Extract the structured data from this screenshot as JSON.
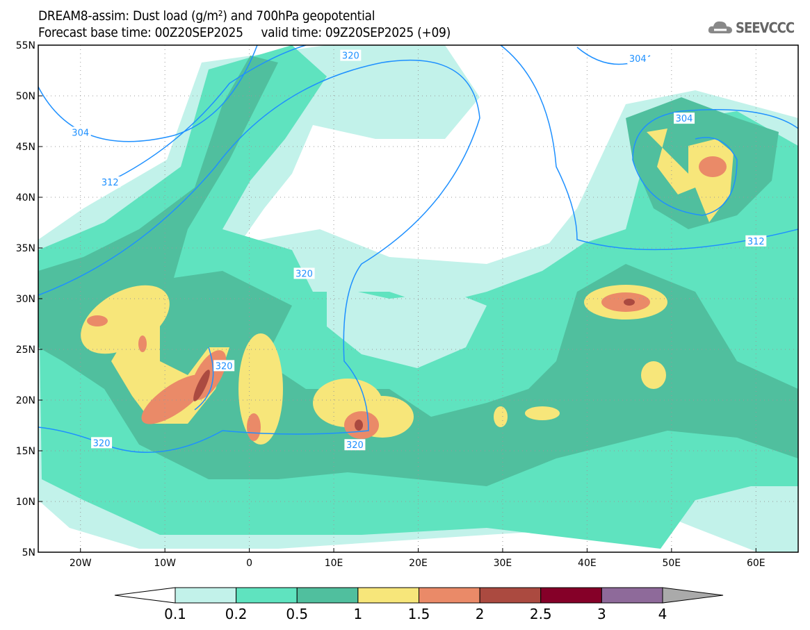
{
  "header": {
    "title_line1": "DREAM8-assim: Dust load (g/m²) and 700hPa geopotential",
    "title_line2": "Forecast base time: 00Z20SEP2025     valid time: 09Z20SEP2025 (+09)",
    "logo_text": "SEEVCCC"
  },
  "map": {
    "lon_range": [
      -25,
      65
    ],
    "lat_range": [
      5,
      55
    ],
    "lon_ticks": [
      {
        "v": -20,
        "label": "20W"
      },
      {
        "v": -10,
        "label": "10W"
      },
      {
        "v": 0,
        "label": "0"
      },
      {
        "v": 10,
        "label": "10E"
      },
      {
        "v": 20,
        "label": "20E"
      },
      {
        "v": 30,
        "label": "30E"
      },
      {
        "v": 40,
        "label": "40E"
      },
      {
        "v": 50,
        "label": "50E"
      },
      {
        "v": 60,
        "label": "60E"
      }
    ],
    "lat_ticks": [
      {
        "v": 55,
        "label": "55N"
      },
      {
        "v": 50,
        "label": "50N"
      },
      {
        "v": 45,
        "label": "45N"
      },
      {
        "v": 40,
        "label": "40N"
      },
      {
        "v": 35,
        "label": "35N"
      },
      {
        "v": 30,
        "label": "30N"
      },
      {
        "v": 25,
        "label": "25N"
      },
      {
        "v": 20,
        "label": "20N"
      },
      {
        "v": 15,
        "label": "15N"
      },
      {
        "v": 10,
        "label": "10N"
      },
      {
        "v": 5,
        "label": "5N"
      }
    ],
    "contour_labels": [
      {
        "text": "320",
        "lon": 12,
        "lat": 54
      },
      {
        "text": "304",
        "lon": 46,
        "lat": 53.7
      },
      {
        "text": "304",
        "lon": -20,
        "lat": 46.4
      },
      {
        "text": "312",
        "lon": -16.5,
        "lat": 41.5
      },
      {
        "text": "304",
        "lon": 51.5,
        "lat": 47.8
      },
      {
        "text": "312",
        "lon": 60,
        "lat": 35.7
      },
      {
        "text": "320",
        "lon": 6.5,
        "lat": 32.5
      },
      {
        "text": "320",
        "lon": -3,
        "lat": 23.4
      },
      {
        "text": "320",
        "lon": -17.5,
        "lat": 15.8
      },
      {
        "text": "320",
        "lon": 12.5,
        "lat": 15.6
      }
    ]
  },
  "colorbar": {
    "colors": [
      "#ffffff",
      "#c2f2ea",
      "#5fe3bf",
      "#50bf9e",
      "#f7e67a",
      "#ea8a68",
      "#ab4a40",
      "#850028",
      "#8e6a9a",
      "#aaaaaa"
    ],
    "labels": [
      "0.1",
      "0.2",
      "0.5",
      "1",
      "1.5",
      "2",
      "2.5",
      "3",
      "4"
    ]
  }
}
